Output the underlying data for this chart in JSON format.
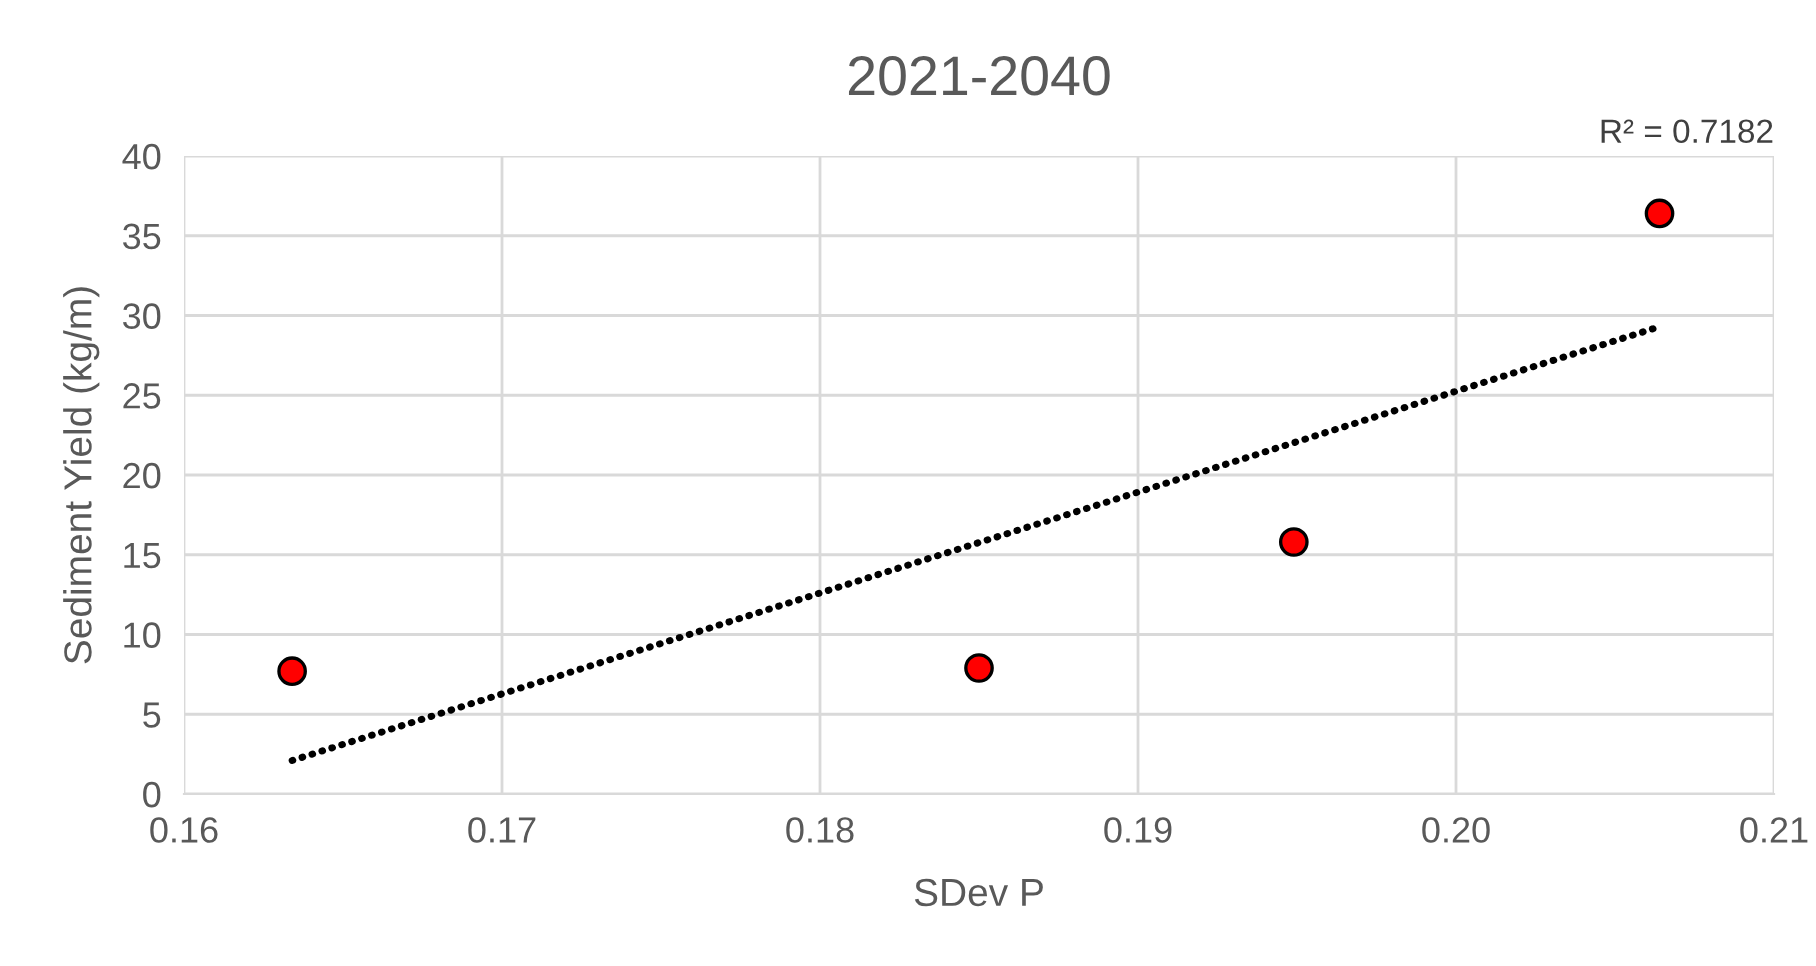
{
  "chart_data": {
    "type": "scatter",
    "title": "2021-2040",
    "xlabel": "SDev P",
    "ylabel": "Sediment Yield (kg/m)",
    "xlim": [
      0.16,
      0.21
    ],
    "xticks": [
      {
        "value": 0.16,
        "label": "0.16"
      },
      {
        "value": 0.17,
        "label": "0.17"
      },
      {
        "value": 0.18,
        "label": "0.18"
      },
      {
        "value": 0.19,
        "label": "0.19"
      },
      {
        "value": 0.2,
        "label": "0.20"
      },
      {
        "value": 0.21,
        "label": "0.21"
      }
    ],
    "ylim": [
      0,
      40
    ],
    "yticks": [
      0,
      5,
      10,
      15,
      20,
      25,
      30,
      35,
      40
    ],
    "grid": true,
    "marker": "circle",
    "series": [
      {
        "color": "#ff0000",
        "x": [
          0.1634,
          0.185,
          0.1949,
          0.2064
        ],
        "values": [
          7.7,
          7.9,
          15.8,
          36.4
        ]
      },
      {
        "type": "line",
        "color": "#000000",
        "line_style": "dotted",
        "marker": "none",
        "x": [
          0.1634,
          0.2064
        ],
        "values": [
          2.1,
          29.3
        ]
      }
    ],
    "annotations": [
      "R² = 0.7182"
    ]
  }
}
